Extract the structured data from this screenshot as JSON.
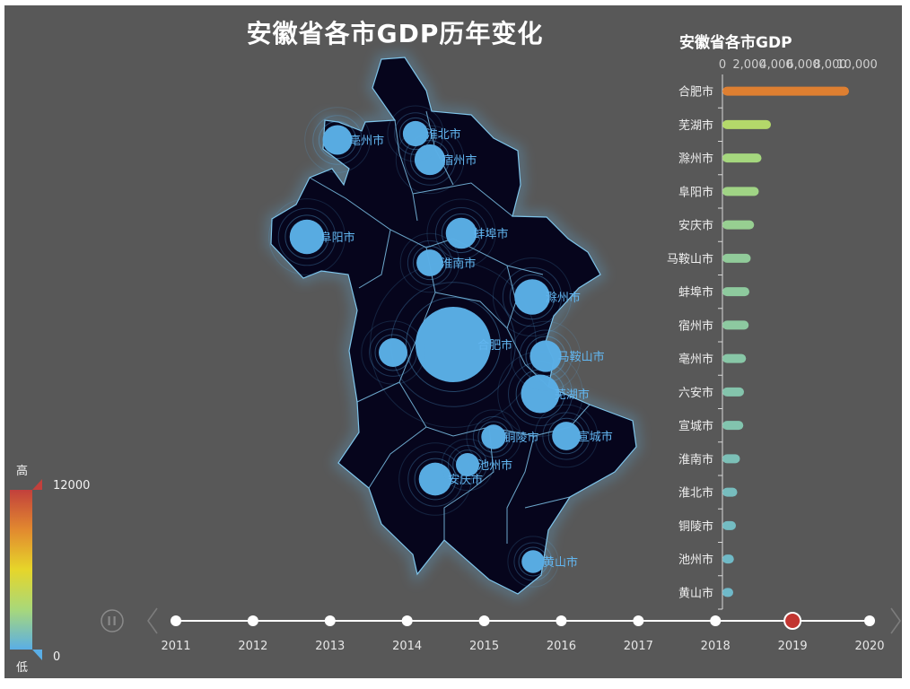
{
  "title": "安徽省各市GDP历年变化",
  "chart_data": [
    {
      "type": "map-bubble",
      "region": "安徽省",
      "visual_map": {
        "min": 0,
        "max": 12000,
        "min_label": "0",
        "max_label": "12000",
        "high_text": "高",
        "low_text": "低",
        "colors": [
          "#5aaee6",
          "#a8d87a",
          "#e6d62a",
          "#e2892f",
          "#c2403c"
        ]
      },
      "points": [
        {
          "name": "合肥市",
          "value": 9400
        },
        {
          "name": "芜湖市",
          "value": 3600
        },
        {
          "name": "滁州市",
          "value": 2900
        },
        {
          "name": "阜阳市",
          "value": 2700
        },
        {
          "name": "安庆市",
          "value": 2350
        },
        {
          "name": "马鞍山市",
          "value": 2100
        },
        {
          "name": "蚌埠市",
          "value": 2000
        },
        {
          "name": "宿州市",
          "value": 1950
        },
        {
          "name": "亳州市",
          "value": 1750
        },
        {
          "name": "六安市",
          "value": 1600
        },
        {
          "name": "宣城市",
          "value": 1550
        },
        {
          "name": "淮南市",
          "value": 1300
        },
        {
          "name": "淮北市",
          "value": 1100
        },
        {
          "name": "铜陵市",
          "value": 1000
        },
        {
          "name": "池州市",
          "value": 850
        },
        {
          "name": "黄山市",
          "value": 800
        }
      ]
    },
    {
      "type": "bar",
      "orientation": "horizontal",
      "title": "安徽省各市GDP",
      "xlim": [
        0,
        10000
      ],
      "xticks": [
        "0",
        "2,000",
        "4,000",
        "6,000",
        "8,000",
        "10,000"
      ],
      "categories": [
        "合肥市",
        "芜湖市",
        "滁州市",
        "阜阳市",
        "安庆市",
        "马鞍山市",
        "蚌埠市",
        "宿州市",
        "亳州市",
        "六安市",
        "宣城市",
        "淮南市",
        "淮北市",
        "铜陵市",
        "池州市",
        "黄山市"
      ],
      "values": [
        9400,
        3600,
        2900,
        2700,
        2350,
        2100,
        2000,
        1950,
        1750,
        1600,
        1550,
        1300,
        1100,
        1000,
        850,
        800
      ]
    }
  ],
  "timeline": {
    "years": [
      "2011",
      "2012",
      "2013",
      "2014",
      "2015",
      "2016",
      "2017",
      "2018",
      "2019",
      "2020"
    ],
    "current": "2019",
    "active_color": "#c23531"
  }
}
